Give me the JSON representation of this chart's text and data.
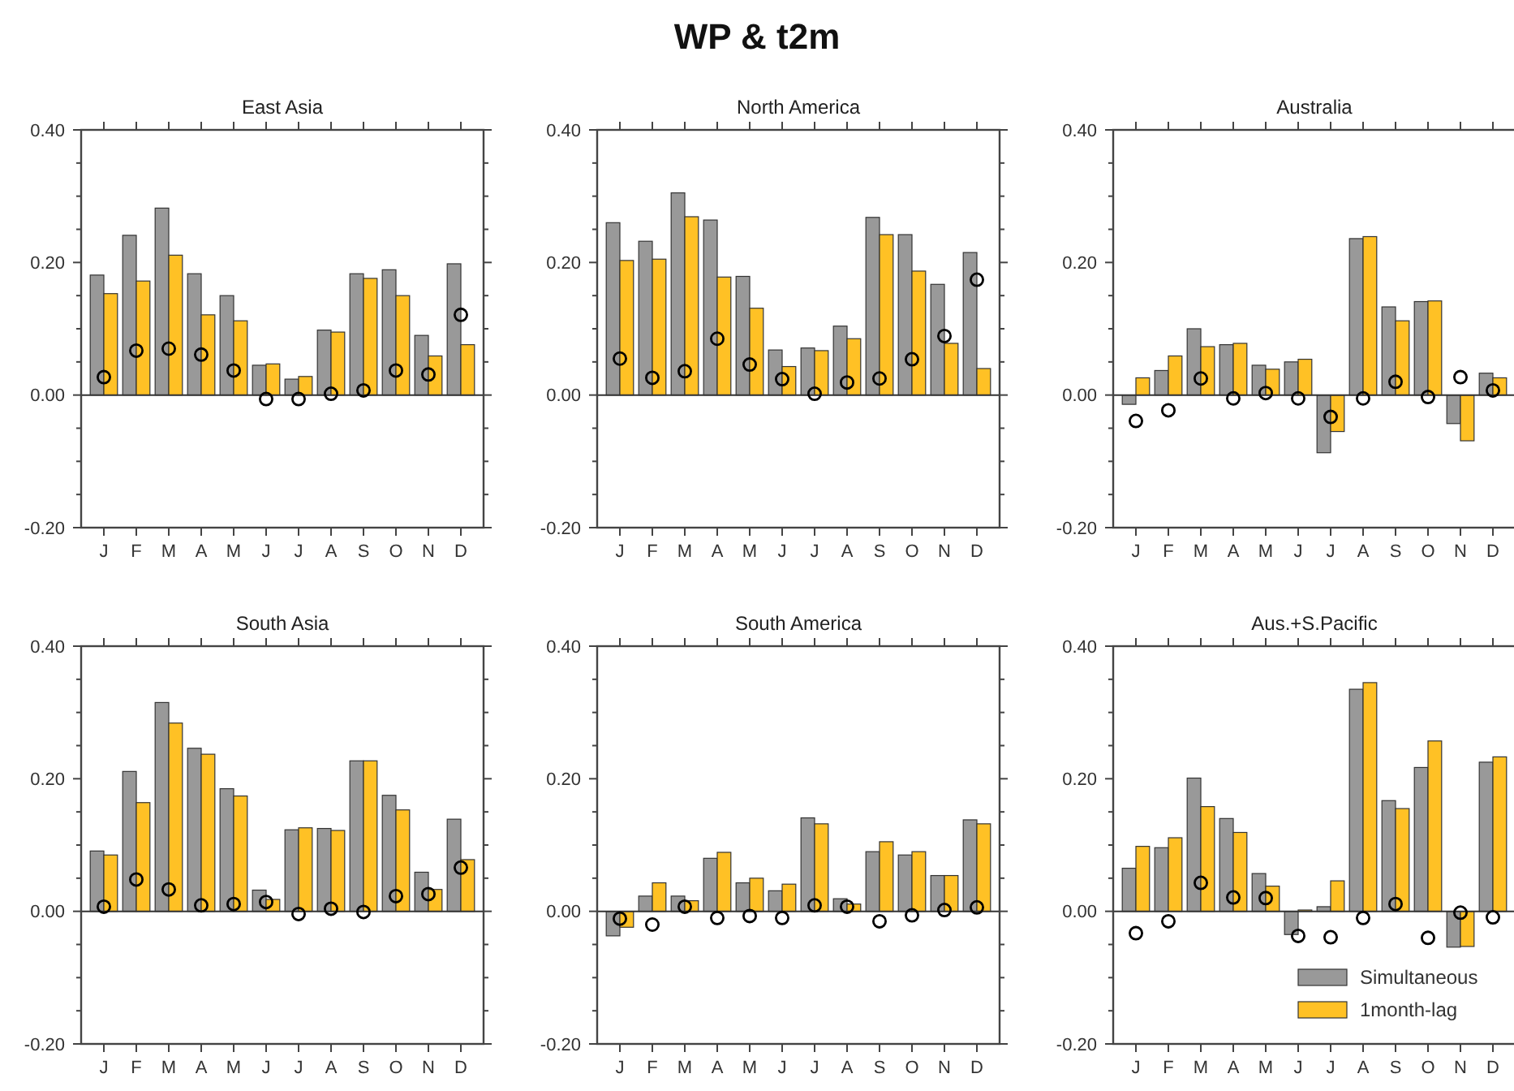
{
  "chart_data": [
    {
      "type": "bar",
      "title": "East Asia",
      "annotations": [
        "WP & t2m"
      ],
      "categories": [
        "J",
        "F",
        "M",
        "A",
        "M",
        "J",
        "J",
        "A",
        "S",
        "O",
        "N",
        "D"
      ],
      "ylim": [
        -0.2,
        0.4
      ],
      "yticks": [
        {
          "value": -0.2,
          "label": "-0.20"
        },
        {
          "value": -0.15,
          "label": null
        },
        {
          "value": -0.1,
          "label": null
        },
        {
          "value": -0.05,
          "label": null
        },
        {
          "value": 0,
          "label": "0.00"
        },
        {
          "value": 0.05,
          "label": null
        },
        {
          "value": 0.1,
          "label": null
        },
        {
          "value": 0.15,
          "label": null
        },
        {
          "value": 0.2,
          "label": "0.20"
        },
        {
          "value": 0.25,
          "label": null
        },
        {
          "value": 0.3,
          "label": null
        },
        {
          "value": 0.35,
          "label": null
        },
        {
          "value": 0.4,
          "label": "0.40"
        }
      ],
      "series": [
        {
          "color": "#999999",
          "values": [
            0.181,
            0.241,
            0.282,
            0.183,
            0.15,
            0.045,
            0.024,
            0.098,
            0.183,
            0.189,
            0.09,
            0.198
          ]
        },
        {
          "color": "#ffc125",
          "values": [
            0.153,
            0.172,
            0.211,
            0.121,
            0.112,
            0.047,
            0.028,
            0.095,
            0.176,
            0.15,
            0.059,
            0.076
          ]
        },
        {
          "type": "scatter",
          "color": "#000000",
          "marker": "circle",
          "values": [
            0.027,
            0.067,
            0.07,
            0.061,
            0.037,
            -0.006,
            -0.006,
            0.002,
            0.007,
            0.037,
            0.031,
            0.121
          ]
        }
      ]
    },
    {
      "type": "bar",
      "title": "North America",
      "categories": [
        "J",
        "F",
        "M",
        "A",
        "M",
        "J",
        "J",
        "A",
        "S",
        "O",
        "N",
        "D"
      ],
      "ylim": [
        -0.2,
        0.4
      ],
      "yticks": [
        {
          "value": -0.2,
          "label": "-0.20"
        },
        {
          "value": -0.15,
          "label": null
        },
        {
          "value": -0.1,
          "label": null
        },
        {
          "value": -0.05,
          "label": null
        },
        {
          "value": 0,
          "label": "0.00"
        },
        {
          "value": 0.05,
          "label": null
        },
        {
          "value": 0.1,
          "label": null
        },
        {
          "value": 0.15,
          "label": null
        },
        {
          "value": 0.2,
          "label": "0.20"
        },
        {
          "value": 0.25,
          "label": null
        },
        {
          "value": 0.3,
          "label": null
        },
        {
          "value": 0.35,
          "label": null
        },
        {
          "value": 0.4,
          "label": "0.40"
        }
      ],
      "series": [
        {
          "color": "#999999",
          "values": [
            0.26,
            0.232,
            0.305,
            0.264,
            0.179,
            0.068,
            0.071,
            0.104,
            0.268,
            0.242,
            0.167,
            0.215
          ]
        },
        {
          "color": "#ffc125",
          "values": [
            0.203,
            0.205,
            0.269,
            0.178,
            0.131,
            0.043,
            0.067,
            0.085,
            0.242,
            0.187,
            0.078,
            0.04
          ]
        },
        {
          "type": "scatter",
          "color": "#000000",
          "marker": "circle",
          "values": [
            0.055,
            0.026,
            0.036,
            0.085,
            0.046,
            0.024,
            0.002,
            0.019,
            0.025,
            0.054,
            0.089,
            0.174
          ]
        }
      ]
    },
    {
      "type": "bar",
      "title": "Australia",
      "categories": [
        "J",
        "F",
        "M",
        "A",
        "M",
        "J",
        "J",
        "A",
        "S",
        "O",
        "N",
        "D"
      ],
      "ylim": [
        -0.2,
        0.4
      ],
      "yticks": [
        {
          "value": -0.2,
          "label": "-0.20"
        },
        {
          "value": -0.15,
          "label": null
        },
        {
          "value": -0.1,
          "label": null
        },
        {
          "value": -0.05,
          "label": null
        },
        {
          "value": 0,
          "label": "0.00"
        },
        {
          "value": 0.05,
          "label": null
        },
        {
          "value": 0.1,
          "label": null
        },
        {
          "value": 0.15,
          "label": null
        },
        {
          "value": 0.2,
          "label": "0.20"
        },
        {
          "value": 0.25,
          "label": null
        },
        {
          "value": 0.3,
          "label": null
        },
        {
          "value": 0.35,
          "label": null
        },
        {
          "value": 0.4,
          "label": "0.40"
        }
      ],
      "series": [
        {
          "color": "#999999",
          "values": [
            -0.014,
            0.037,
            0.1,
            0.076,
            0.045,
            0.05,
            -0.087,
            0.236,
            0.133,
            0.141,
            -0.043,
            0.033
          ]
        },
        {
          "color": "#ffc125",
          "values": [
            0.026,
            0.059,
            0.073,
            0.078,
            0.039,
            0.054,
            -0.055,
            0.239,
            0.112,
            0.142,
            -0.069,
            0.026
          ]
        },
        {
          "type": "scatter",
          "color": "#000000",
          "marker": "circle",
          "values": [
            -0.039,
            -0.023,
            0.025,
            -0.005,
            0.003,
            -0.005,
            -0.033,
            -0.005,
            0.02,
            -0.003,
            0.027,
            0.007
          ]
        }
      ]
    },
    {
      "type": "bar",
      "title": "South Asia",
      "categories": [
        "J",
        "F",
        "M",
        "A",
        "M",
        "J",
        "J",
        "A",
        "S",
        "O",
        "N",
        "D"
      ],
      "ylim": [
        -0.2,
        0.4
      ],
      "yticks": [
        {
          "value": -0.2,
          "label": "-0.20"
        },
        {
          "value": -0.15,
          "label": null
        },
        {
          "value": -0.1,
          "label": null
        },
        {
          "value": -0.05,
          "label": null
        },
        {
          "value": 0,
          "label": "0.00"
        },
        {
          "value": 0.05,
          "label": null
        },
        {
          "value": 0.1,
          "label": null
        },
        {
          "value": 0.15,
          "label": null
        },
        {
          "value": 0.2,
          "label": "0.20"
        },
        {
          "value": 0.25,
          "label": null
        },
        {
          "value": 0.3,
          "label": null
        },
        {
          "value": 0.35,
          "label": null
        },
        {
          "value": 0.4,
          "label": "0.40"
        }
      ],
      "series": [
        {
          "color": "#999999",
          "values": [
            0.091,
            0.211,
            0.315,
            0.246,
            0.185,
            0.032,
            0.123,
            0.125,
            0.227,
            0.175,
            0.059,
            0.139
          ]
        },
        {
          "color": "#ffc125",
          "values": [
            0.085,
            0.164,
            0.284,
            0.237,
            0.174,
            0.018,
            0.126,
            0.122,
            0.227,
            0.153,
            0.033,
            0.078
          ]
        },
        {
          "type": "scatter",
          "color": "#000000",
          "marker": "circle",
          "values": [
            0.007,
            0.048,
            0.033,
            0.009,
            0.011,
            0.014,
            -0.004,
            0.004,
            -0.001,
            0.023,
            0.026,
            0.066
          ]
        }
      ]
    },
    {
      "type": "bar",
      "title": "South America",
      "categories": [
        "J",
        "F",
        "M",
        "A",
        "M",
        "J",
        "J",
        "A",
        "S",
        "O",
        "N",
        "D"
      ],
      "ylim": [
        -0.2,
        0.4
      ],
      "yticks": [
        {
          "value": -0.2,
          "label": "-0.20"
        },
        {
          "value": -0.15,
          "label": null
        },
        {
          "value": -0.1,
          "label": null
        },
        {
          "value": -0.05,
          "label": null
        },
        {
          "value": 0,
          "label": "0.00"
        },
        {
          "value": 0.05,
          "label": null
        },
        {
          "value": 0.1,
          "label": null
        },
        {
          "value": 0.15,
          "label": null
        },
        {
          "value": 0.2,
          "label": "0.20"
        },
        {
          "value": 0.25,
          "label": null
        },
        {
          "value": 0.3,
          "label": null
        },
        {
          "value": 0.35,
          "label": null
        },
        {
          "value": 0.4,
          "label": "0.40"
        }
      ],
      "series": [
        {
          "color": "#999999",
          "values": [
            -0.037,
            0.023,
            0.023,
            0.08,
            0.043,
            0.031,
            0.141,
            0.019,
            0.09,
            0.085,
            0.054,
            0.138
          ]
        },
        {
          "color": "#ffc125",
          "values": [
            -0.024,
            0.043,
            0.016,
            0.089,
            0.05,
            0.041,
            0.132,
            0.011,
            0.105,
            0.09,
            0.054,
            0.132
          ]
        },
        {
          "type": "scatter",
          "color": "#000000",
          "marker": "circle",
          "values": [
            -0.011,
            -0.02,
            0.007,
            -0.01,
            -0.007,
            -0.01,
            0.009,
            0.007,
            -0.015,
            -0.006,
            0.002,
            0.006
          ]
        }
      ]
    },
    {
      "type": "bar",
      "title": "Aus.+S.Pacific",
      "legend": "bottom right",
      "categories": [
        "J",
        "F",
        "M",
        "A",
        "M",
        "J",
        "J",
        "A",
        "S",
        "O",
        "N",
        "D"
      ],
      "ylim": [
        -0.2,
        0.4
      ],
      "yticks": [
        {
          "value": -0.2,
          "label": "-0.20"
        },
        {
          "value": -0.15,
          "label": null
        },
        {
          "value": -0.1,
          "label": null
        },
        {
          "value": -0.05,
          "label": null
        },
        {
          "value": 0,
          "label": "0.00"
        },
        {
          "value": 0.05,
          "label": null
        },
        {
          "value": 0.1,
          "label": null
        },
        {
          "value": 0.15,
          "label": null
        },
        {
          "value": 0.2,
          "label": "0.20"
        },
        {
          "value": 0.25,
          "label": null
        },
        {
          "value": 0.3,
          "label": null
        },
        {
          "value": 0.35,
          "label": null
        },
        {
          "value": 0.4,
          "label": "0.40"
        }
      ],
      "series": [
        {
          "name": "Simultaneous",
          "color": "#999999",
          "values": [
            0.065,
            0.096,
            0.201,
            0.14,
            0.057,
            -0.035,
            0.007,
            0.335,
            0.167,
            0.217,
            -0.054,
            0.225
          ]
        },
        {
          "name": "1month-lag",
          "color": "#ffc125",
          "values": [
            0.098,
            0.111,
            0.158,
            0.119,
            0.038,
            0.002,
            0.046,
            0.345,
            0.155,
            0.257,
            -0.053,
            0.233
          ]
        },
        {
          "type": "scatter",
          "color": "#000000",
          "marker": "circle",
          "values": [
            -0.033,
            -0.015,
            0.043,
            0.021,
            0.02,
            -0.037,
            -0.039,
            -0.01,
            0.011,
            -0.04,
            -0.002,
            -0.009
          ]
        }
      ]
    }
  ]
}
